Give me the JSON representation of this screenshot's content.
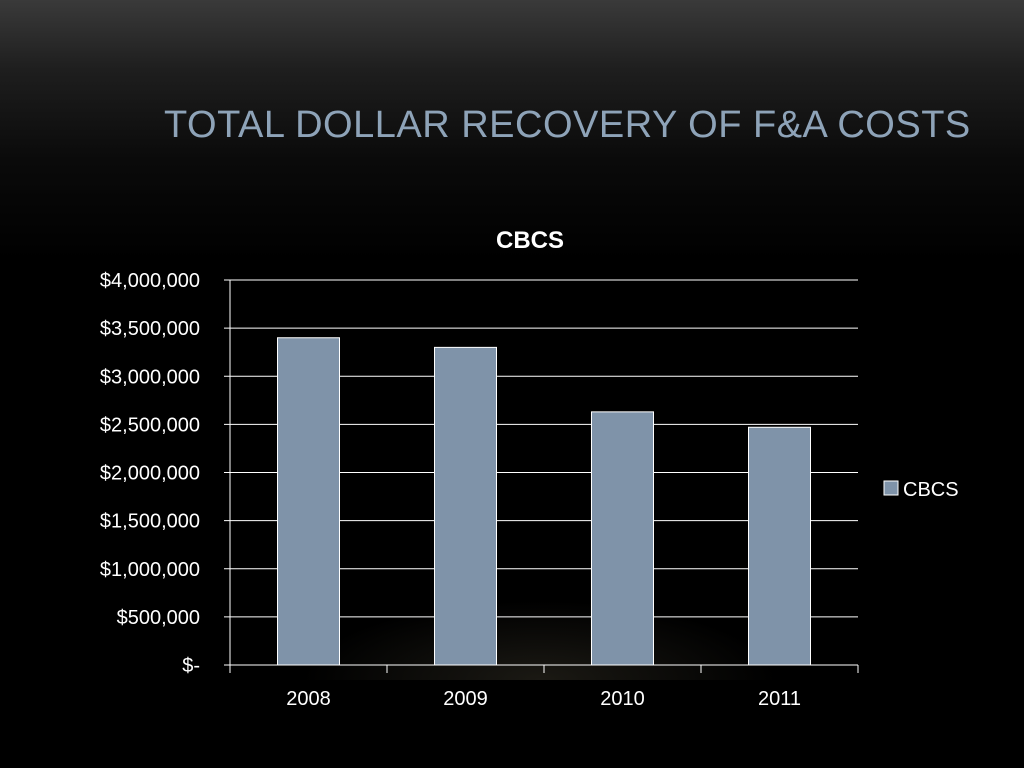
{
  "slide": {
    "title": "TOTAL DOLLAR RECOVERY OF F&A COSTS"
  },
  "colors": {
    "bar": "#7f93a9",
    "title": "#8ea3b8",
    "gridline": "#ffffff"
  },
  "chart_data": {
    "type": "bar",
    "title": "CBCS",
    "categories": [
      "2008",
      "2009",
      "2010",
      "2011"
    ],
    "series": [
      {
        "name": "CBCS",
        "values": [
          3400000,
          3300000,
          2630000,
          2470000
        ]
      }
    ],
    "ylim": [
      0,
      4000000
    ],
    "yticks": [
      0,
      500000,
      1000000,
      1500000,
      2000000,
      2500000,
      3000000,
      3500000,
      4000000
    ],
    "ytick_labels": [
      "$-",
      "$500,000",
      "$1,000,000",
      "$1,500,000",
      "$2,000,000",
      "$2,500,000",
      "$3,000,000",
      "$3,500,000",
      "$4,000,000"
    ],
    "xlabel": "",
    "ylabel": "",
    "grid": true,
    "legend": {
      "position": "right",
      "entries": [
        "CBCS"
      ]
    }
  }
}
